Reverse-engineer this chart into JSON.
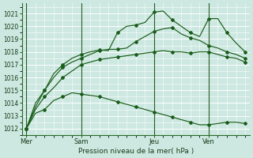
{
  "bg_color": "#cce8e0",
  "grid_color": "#ffffff",
  "line_color": "#1a5c1a",
  "title": "Pression niveau de la mer( hPa )",
  "ylim": [
    1011.5,
    1021.8
  ],
  "yticks": [
    1012,
    1013,
    1014,
    1015,
    1016,
    1017,
    1018,
    1019,
    1020,
    1021
  ],
  "xtick_labels": [
    "Mer",
    "Sam",
    "Jeu",
    "Ven"
  ],
  "n_points": 25,
  "series": [
    [
      1012.0,
      1013.2,
      1013.5,
      1014.2,
      1014.5,
      1014.8,
      1014.7,
      1014.6,
      1014.5,
      1014.3,
      1014.1,
      1013.9,
      1013.7,
      1013.5,
      1013.3,
      1013.1,
      1012.9,
      1012.7,
      1012.5,
      1012.3,
      1012.3,
      1012.4,
      1012.5,
      1012.5,
      1012.4
    ],
    [
      1012.0,
      1013.5,
      1014.5,
      1015.2,
      1016.0,
      1016.5,
      1017.0,
      1017.2,
      1017.4,
      1017.5,
      1017.6,
      1017.7,
      1017.8,
      1017.9,
      1018.0,
      1018.1,
      1018.0,
      1018.0,
      1017.9,
      1018.0,
      1018.0,
      1017.8,
      1017.6,
      1017.5,
      1017.2
    ],
    [
      1012.0,
      1013.7,
      1015.0,
      1016.0,
      1016.8,
      1017.2,
      1017.5,
      1017.8,
      1018.1,
      1018.2,
      1018.2,
      1018.3,
      1018.8,
      1019.2,
      1019.6,
      1019.8,
      1019.9,
      1019.4,
      1019.1,
      1018.9,
      1018.5,
      1018.3,
      1018.0,
      1017.8,
      1017.5
    ],
    [
      1012.0,
      1014.0,
      1015.0,
      1016.3,
      1017.0,
      1017.5,
      1017.8,
      1018.0,
      1018.15,
      1018.1,
      1019.5,
      1020.0,
      1020.1,
      1020.3,
      1021.1,
      1021.2,
      1020.5,
      1020.0,
      1019.5,
      1019.2,
      1020.6,
      1020.6,
      1019.5,
      1018.7,
      1018.0
    ]
  ],
  "vline_x": [
    0,
    6,
    14,
    20
  ],
  "xtick_x": [
    0,
    6,
    14,
    20
  ]
}
